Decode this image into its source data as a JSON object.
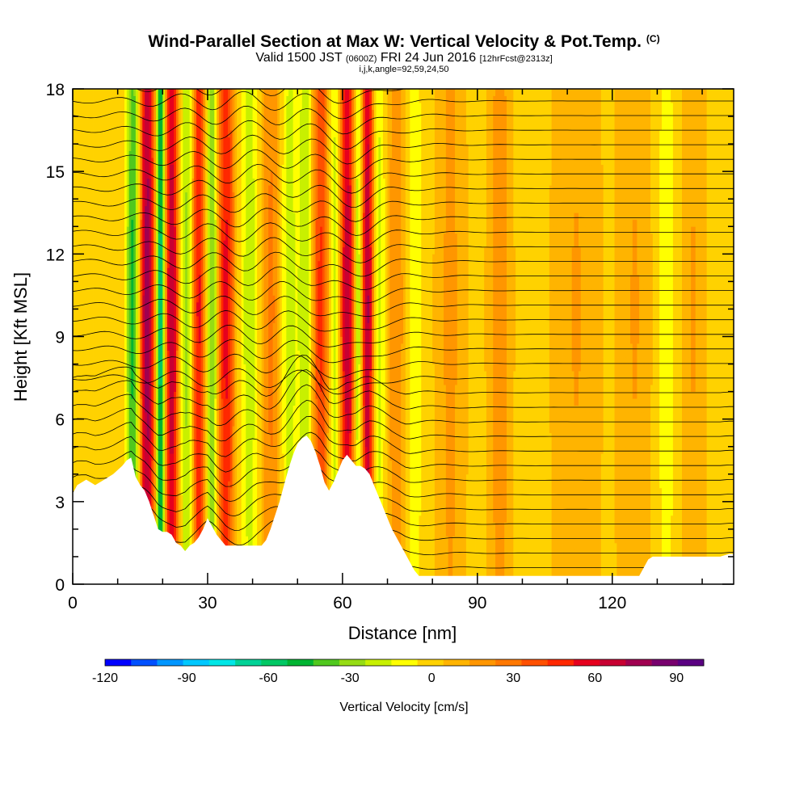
{
  "title": {
    "main": "Wind-Parallel Section at Max W: Vertical Velocity & Pot.Temp.",
    "unit_tag": "(C)",
    "valid_prefix": "Valid 1500 JST",
    "valid_utc": "(0600Z)",
    "valid_date": "FRI 24 Jun 2016",
    "forecast": "[12hrFcst@2313z]",
    "indices": "i,j,k,angle=92,59,24,50"
  },
  "chart_data": {
    "type": "heatmap",
    "xlabel": "Distance [nm]",
    "ylabel": "Height [Kft MSL]",
    "xlim": [
      0,
      147
    ],
    "ylim": [
      0,
      18
    ],
    "x_ticks": [
      "0",
      "30",
      "60",
      "90",
      "120"
    ],
    "y_ticks": [
      "0",
      "3",
      "6",
      "9",
      "12",
      "15",
      "18"
    ],
    "colorbar": {
      "label": "Vertical Velocity [cm/s]",
      "range": [
        -120,
        100
      ],
      "ticks": [
        "-120",
        "-90",
        "-60",
        "-30",
        "0",
        "30",
        "60",
        "90"
      ],
      "colors": [
        "#0000ff",
        "#0050ff",
        "#0096ff",
        "#00c8ff",
        "#00e6e6",
        "#00d296",
        "#00c864",
        "#00b432",
        "#50c81e",
        "#96dc14",
        "#c8f000",
        "#ffff00",
        "#ffd200",
        "#ffb400",
        "#ff9600",
        "#ff7800",
        "#ff5000",
        "#ff2800",
        "#e6001e",
        "#c80032",
        "#a00050",
        "#78006e",
        "#5a0082"
      ]
    },
    "terrain": [
      [
        0,
        3.3
      ],
      [
        1,
        3.6
      ],
      [
        3,
        3.8
      ],
      [
        5,
        3.6
      ],
      [
        7,
        3.8
      ],
      [
        9,
        4.0
      ],
      [
        11,
        4.3
      ],
      [
        12,
        4.5
      ],
      [
        13,
        4.6
      ],
      [
        14,
        3.9
      ],
      [
        15,
        3.6
      ],
      [
        16,
        3.4
      ],
      [
        17,
        3.0
      ],
      [
        18,
        2.5
      ],
      [
        19,
        2.0
      ],
      [
        20,
        1.9
      ],
      [
        21,
        1.9
      ],
      [
        22,
        1.8
      ],
      [
        23,
        1.5
      ],
      [
        24,
        1.4
      ],
      [
        25,
        1.2
      ],
      [
        26,
        1.4
      ],
      [
        27,
        1.5
      ],
      [
        28,
        1.7
      ],
      [
        29,
        2.0
      ],
      [
        30,
        2.4
      ],
      [
        31,
        2.1
      ],
      [
        32,
        1.8
      ],
      [
        33,
        1.6
      ],
      [
        34,
        1.4
      ],
      [
        36,
        1.4
      ],
      [
        38,
        1.4
      ],
      [
        40,
        1.4
      ],
      [
        42,
        1.4
      ],
      [
        43,
        1.6
      ],
      [
        44,
        2.0
      ],
      [
        45,
        2.5
      ],
      [
        46,
        3.0
      ],
      [
        47,
        3.6
      ],
      [
        48,
        4.2
      ],
      [
        49,
        4.7
      ],
      [
        50,
        5.1
      ],
      [
        51,
        5.3
      ],
      [
        52,
        5.4
      ],
      [
        53,
        5.2
      ],
      [
        54,
        4.8
      ],
      [
        55,
        4.3
      ],
      [
        56,
        3.7
      ],
      [
        57,
        3.4
      ],
      [
        58,
        3.7
      ],
      [
        59,
        4.1
      ],
      [
        60,
        4.5
      ],
      [
        61,
        4.7
      ],
      [
        62,
        4.5
      ],
      [
        63,
        4.3
      ],
      [
        64,
        4.3
      ],
      [
        65,
        4.2
      ],
      [
        66,
        4.0
      ],
      [
        67,
        3.6
      ],
      [
        68,
        3.2
      ],
      [
        69,
        2.8
      ],
      [
        70,
        2.4
      ],
      [
        71,
        2.0
      ],
      [
        72,
        1.7
      ],
      [
        73,
        1.4
      ],
      [
        74,
        1.1
      ],
      [
        75,
        0.8
      ],
      [
        76,
        0.5
      ],
      [
        77,
        0.3
      ],
      [
        80,
        0.3
      ],
      [
        90,
        0.3
      ],
      [
        100,
        0.3
      ],
      [
        110,
        0.3
      ],
      [
        115,
        0.3
      ],
      [
        120,
        0.3
      ],
      [
        126,
        0.3
      ],
      [
        127,
        0.6
      ],
      [
        128,
        0.9
      ],
      [
        129,
        1.0
      ],
      [
        130,
        1.0
      ],
      [
        132,
        1.0
      ],
      [
        134,
        1.0
      ],
      [
        136,
        1.0
      ],
      [
        138,
        1.0
      ],
      [
        140,
        1.0
      ],
      [
        142,
        1.0
      ],
      [
        144,
        1.0
      ],
      [
        146,
        1.1
      ],
      [
        147,
        1.1
      ]
    ],
    "bands": [
      {
        "x": 13.5,
        "w": 1.6,
        "amp": -55
      },
      {
        "x": 16.5,
        "w": 1.8,
        "amp": 80
      },
      {
        "x": 19.5,
        "w": 1.0,
        "amp": -75
      },
      {
        "x": 22.0,
        "w": 1.5,
        "amp": 70
      },
      {
        "x": 25.5,
        "w": 1.5,
        "amp": -35
      },
      {
        "x": 28.0,
        "w": 1.6,
        "amp": 55
      },
      {
        "x": 31.0,
        "w": 1.5,
        "amp": -45
      },
      {
        "x": 34.0,
        "w": 2.0,
        "amp": 55
      },
      {
        "x": 39.5,
        "w": 2.5,
        "amp": -25
      },
      {
        "x": 44.0,
        "w": 2.5,
        "amp": 25
      },
      {
        "x": 48.0,
        "w": 2.0,
        "amp": -25
      },
      {
        "x": 52.0,
        "w": 1.8,
        "amp": -30
      },
      {
        "x": 55.0,
        "w": 2.0,
        "amp": 45
      },
      {
        "x": 58.5,
        "w": 1.5,
        "amp": -40
      },
      {
        "x": 61.0,
        "w": 2.2,
        "amp": 70
      },
      {
        "x": 63.5,
        "w": 1.2,
        "amp": -55
      },
      {
        "x": 65.5,
        "w": 1.5,
        "amp": 75
      },
      {
        "x": 68.0,
        "w": 1.5,
        "amp": -25
      },
      {
        "x": 72.0,
        "w": 2.0,
        "amp": 20
      },
      {
        "x": 76.0,
        "w": 2.0,
        "amp": -15
      },
      {
        "x": 84.0,
        "w": 2.5,
        "amp": 15
      },
      {
        "x": 95.0,
        "w": 2.0,
        "amp": 20
      },
      {
        "x": 112.0,
        "w": 4.0,
        "amp": 12
      },
      {
        "x": 125.0,
        "w": 3.0,
        "amp": 12
      },
      {
        "x": 132.0,
        "w": 2.0,
        "amp": -15
      },
      {
        "x": 138.0,
        "w": 2.0,
        "amp": 12
      }
    ]
  }
}
